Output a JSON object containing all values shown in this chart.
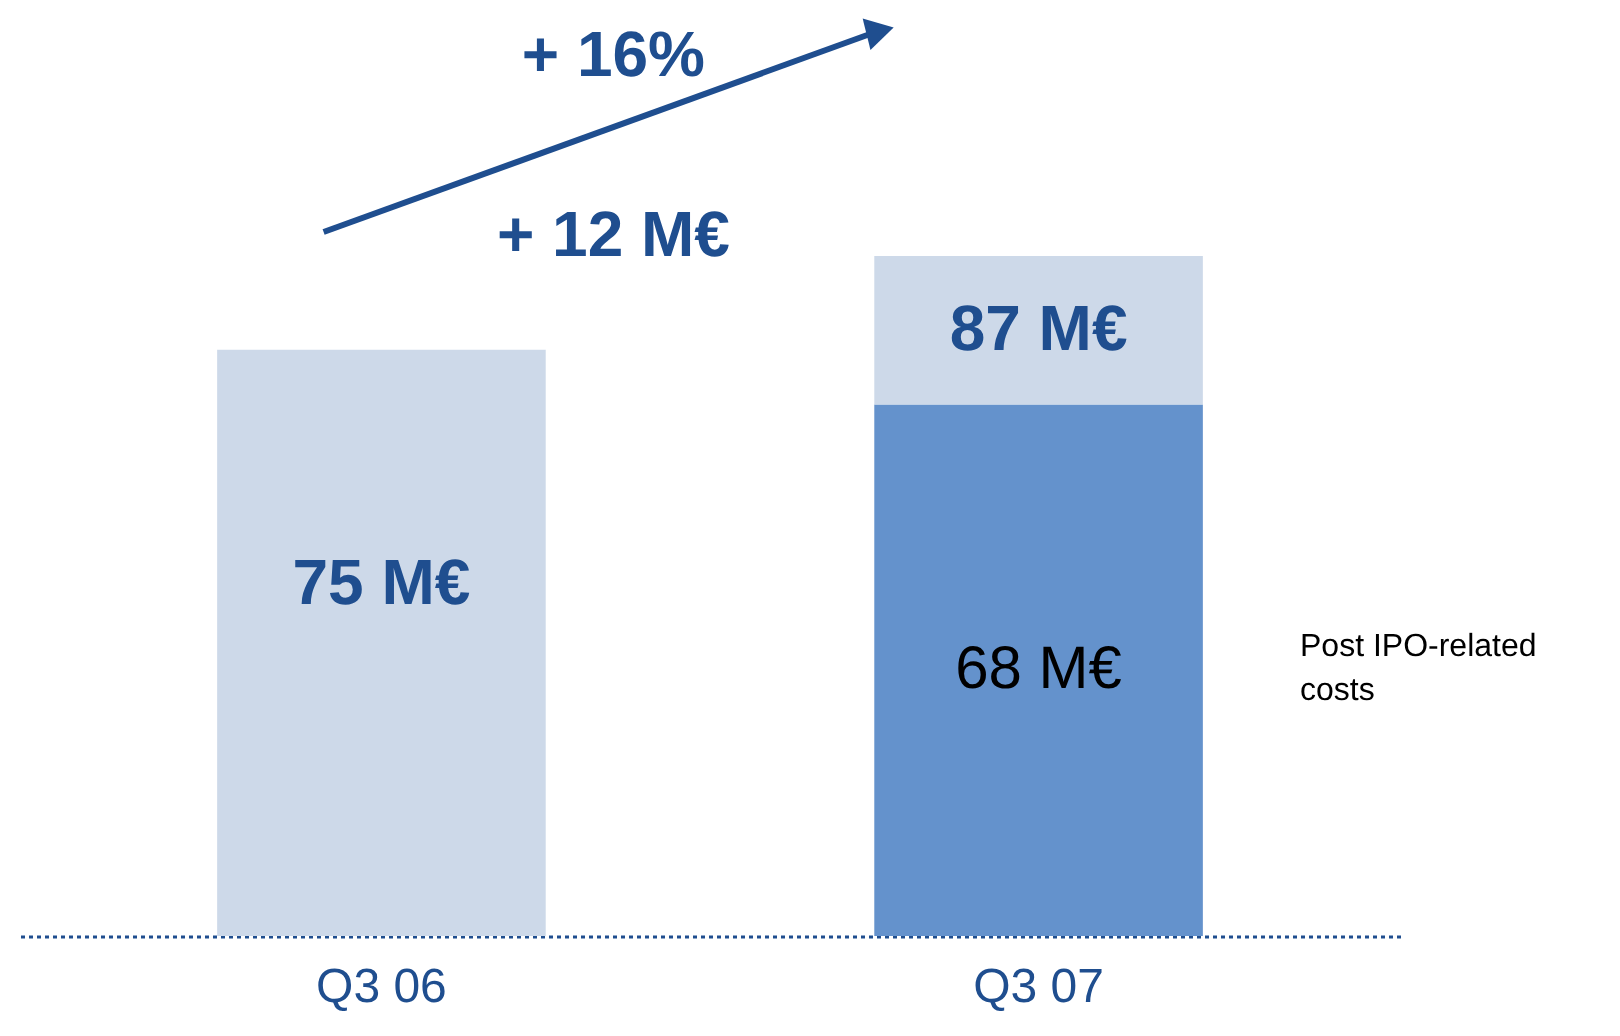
{
  "chart_data": {
    "type": "bar",
    "stacked": true,
    "categories": [
      "Q3 06",
      "Q3 07"
    ],
    "series": [
      {
        "name": "Post IPO-related costs",
        "color": "#6492cc",
        "values": [
          null,
          68
        ],
        "value_labels": [
          null,
          "68 M€"
        ]
      },
      {
        "color": "#cdd9e9",
        "values": [
          75,
          19
        ]
      }
    ],
    "totals": [
      "75 M€",
      "87 M€"
    ],
    "annotations": [
      "+ 16%",
      "+ 12 M€"
    ]
  }
}
